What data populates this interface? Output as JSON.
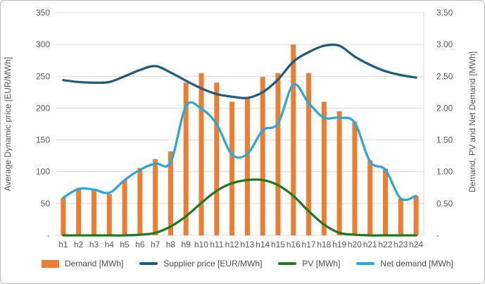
{
  "chart_data": {
    "type": "combo-bar-line",
    "title": "",
    "x_categories": [
      "h1",
      "h2",
      "h3",
      "h4",
      "h5",
      "h6",
      "h7",
      "h8",
      "h9",
      "h10",
      "h11",
      "h12",
      "h13",
      "h14",
      "h15",
      "h16",
      "h17",
      "h18",
      "h19",
      "h20",
      "h21",
      "h22",
      "h23",
      "h24"
    ],
    "left_axis": {
      "label": "Average Dynamic price [EUR/MWh]",
      "ticks": [
        "350",
        "300",
        "250",
        "200",
        "150",
        "100",
        "50",
        "-"
      ],
      "min": 0,
      "max": 350
    },
    "right_axis": {
      "label": "Demand, PV and Net Demand [MWh]",
      "ticks": [
        "3.50",
        "3.00",
        "2.50",
        "2.00",
        "1.50",
        "1.00",
        "0.50",
        "-"
      ],
      "min": 0,
      "max": 3.5
    },
    "grid": true,
    "legend_position": "bottom",
    "series": [
      {
        "name": "Demand [MWh]",
        "type": "bar",
        "axis": "right",
        "color": "#ED7D31",
        "values": [
          0.59,
          0.73,
          0.72,
          0.65,
          0.87,
          1.06,
          1.2,
          1.32,
          2.4,
          2.55,
          2.4,
          2.1,
          2.15,
          2.49,
          2.55,
          3.0,
          2.55,
          2.1,
          1.95,
          1.79,
          1.18,
          1.05,
          0.58,
          0.62
        ]
      },
      {
        "name": "Supplier price [EUR/MWh]",
        "type": "line",
        "axis": "left",
        "color": "#1F5C7D",
        "values": [
          244,
          241,
          240,
          241,
          250,
          260,
          266,
          256,
          243,
          231,
          222,
          218,
          216,
          225,
          245,
          273,
          288,
          298,
          298,
          281,
          268,
          258,
          252,
          248
        ]
      },
      {
        "name": "PV [MWh]",
        "type": "line",
        "axis": "right",
        "color": "#1E7A1E",
        "values": [
          0,
          0,
          0,
          0,
          0,
          0.01,
          0.04,
          0.14,
          0.3,
          0.51,
          0.7,
          0.82,
          0.87,
          0.87,
          0.79,
          0.62,
          0.38,
          0.17,
          0.04,
          0.01,
          0,
          0,
          0,
          0
        ]
      },
      {
        "name": "Net demand [MWh]",
        "type": "line",
        "axis": "right",
        "color": "#29A8DF",
        "values": [
          0.59,
          0.73,
          0.72,
          0.67,
          0.87,
          1.03,
          1.13,
          1.15,
          2.03,
          1.99,
          1.75,
          1.27,
          1.28,
          1.65,
          1.76,
          2.37,
          2.08,
          1.85,
          1.85,
          1.77,
          1.16,
          1.03,
          0.58,
          0.62
        ]
      }
    ],
    "styles": {
      "grid_color": "#D9D9D9",
      "tick_text_color": "#595959",
      "axis_title_color": "#595959",
      "legend_text_color": "#4d4d4d"
    }
  }
}
